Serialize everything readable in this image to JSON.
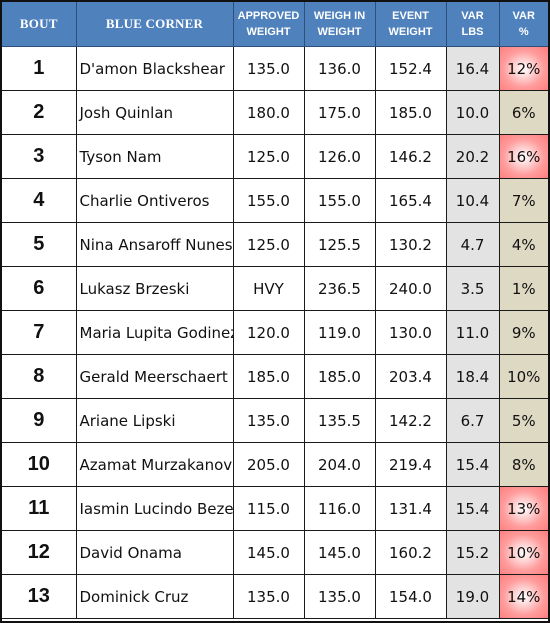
{
  "headers": {
    "bout": "BOUT",
    "blue_corner": "BLUE CORNER",
    "approved_weight": [
      "APPROVED",
      "WEIGHT"
    ],
    "weigh_in_weight": [
      "WEIGH IN",
      "WEIGHT"
    ],
    "event_weight": [
      "EVENT",
      "WEIGHT"
    ],
    "var_lbs": [
      "VAR",
      "LBS"
    ],
    "var_pct": [
      "VAR",
      "%"
    ]
  },
  "colors": {
    "header_bg": "#4f81bd",
    "var_lbs_bg": "#e3e3e3",
    "var_pct_bg": "#ddd9c3",
    "var_pct_highlight": "#ff7f7f"
  },
  "rows": [
    {
      "bout": "1",
      "name": "D'amon Blackshear",
      "approved": "135.0",
      "weigh_in": "136.0",
      "event": "152.4",
      "var_lbs": "16.4",
      "var_pct": "12%",
      "highlight": true
    },
    {
      "bout": "2",
      "name": "Josh Quinlan",
      "approved": "180.0",
      "weigh_in": "175.0",
      "event": "185.0",
      "var_lbs": "10.0",
      "var_pct": "6%",
      "highlight": false
    },
    {
      "bout": "3",
      "name": "Tyson Nam",
      "approved": "125.0",
      "weigh_in": "126.0",
      "event": "146.2",
      "var_lbs": "20.2",
      "var_pct": "16%",
      "highlight": true
    },
    {
      "bout": "4",
      "name": "Charlie Ontiveros",
      "approved": "155.0",
      "weigh_in": "155.0",
      "event": "165.4",
      "var_lbs": "10.4",
      "var_pct": "7%",
      "highlight": false
    },
    {
      "bout": "5",
      "name": "Nina Ansaroff Nunes",
      "approved": "125.0",
      "weigh_in": "125.5",
      "event": "130.2",
      "var_lbs": "4.7",
      "var_pct": "4%",
      "highlight": false
    },
    {
      "bout": "6",
      "name": "Lukasz Brzeski",
      "approved": "HVY",
      "weigh_in": "236.5",
      "event": "240.0",
      "var_lbs": "3.5",
      "var_pct": "1%",
      "highlight": false
    },
    {
      "bout": "7",
      "name": "Maria Lupita Godinez",
      "approved": "120.0",
      "weigh_in": "119.0",
      "event": "130.0",
      "var_lbs": "11.0",
      "var_pct": "9%",
      "highlight": false
    },
    {
      "bout": "8",
      "name": "Gerald Meerschaert",
      "approved": "185.0",
      "weigh_in": "185.0",
      "event": "203.4",
      "var_lbs": "18.4",
      "var_pct": "10%",
      "highlight": false
    },
    {
      "bout": "9",
      "name": "Ariane Lipski",
      "approved": "135.0",
      "weigh_in": "135.5",
      "event": "142.2",
      "var_lbs": "6.7",
      "var_pct": "5%",
      "highlight": false
    },
    {
      "bout": "10",
      "name": "Azamat Murzakanov",
      "approved": "205.0",
      "weigh_in": "204.0",
      "event": "219.4",
      "var_lbs": "15.4",
      "var_pct": "8%",
      "highlight": false
    },
    {
      "bout": "11",
      "name": "Iasmin Lucindo Bezer",
      "approved": "115.0",
      "weigh_in": "116.0",
      "event": "131.4",
      "var_lbs": "15.4",
      "var_pct": "13%",
      "highlight": true
    },
    {
      "bout": "12",
      "name": "David Onama",
      "approved": "145.0",
      "weigh_in": "145.0",
      "event": "160.2",
      "var_lbs": "15.2",
      "var_pct": "10%",
      "highlight": true
    },
    {
      "bout": "13",
      "name": "Dominick Cruz",
      "approved": "135.0",
      "weigh_in": "135.0",
      "event": "154.0",
      "var_lbs": "19.0",
      "var_pct": "14%",
      "highlight": true
    }
  ]
}
